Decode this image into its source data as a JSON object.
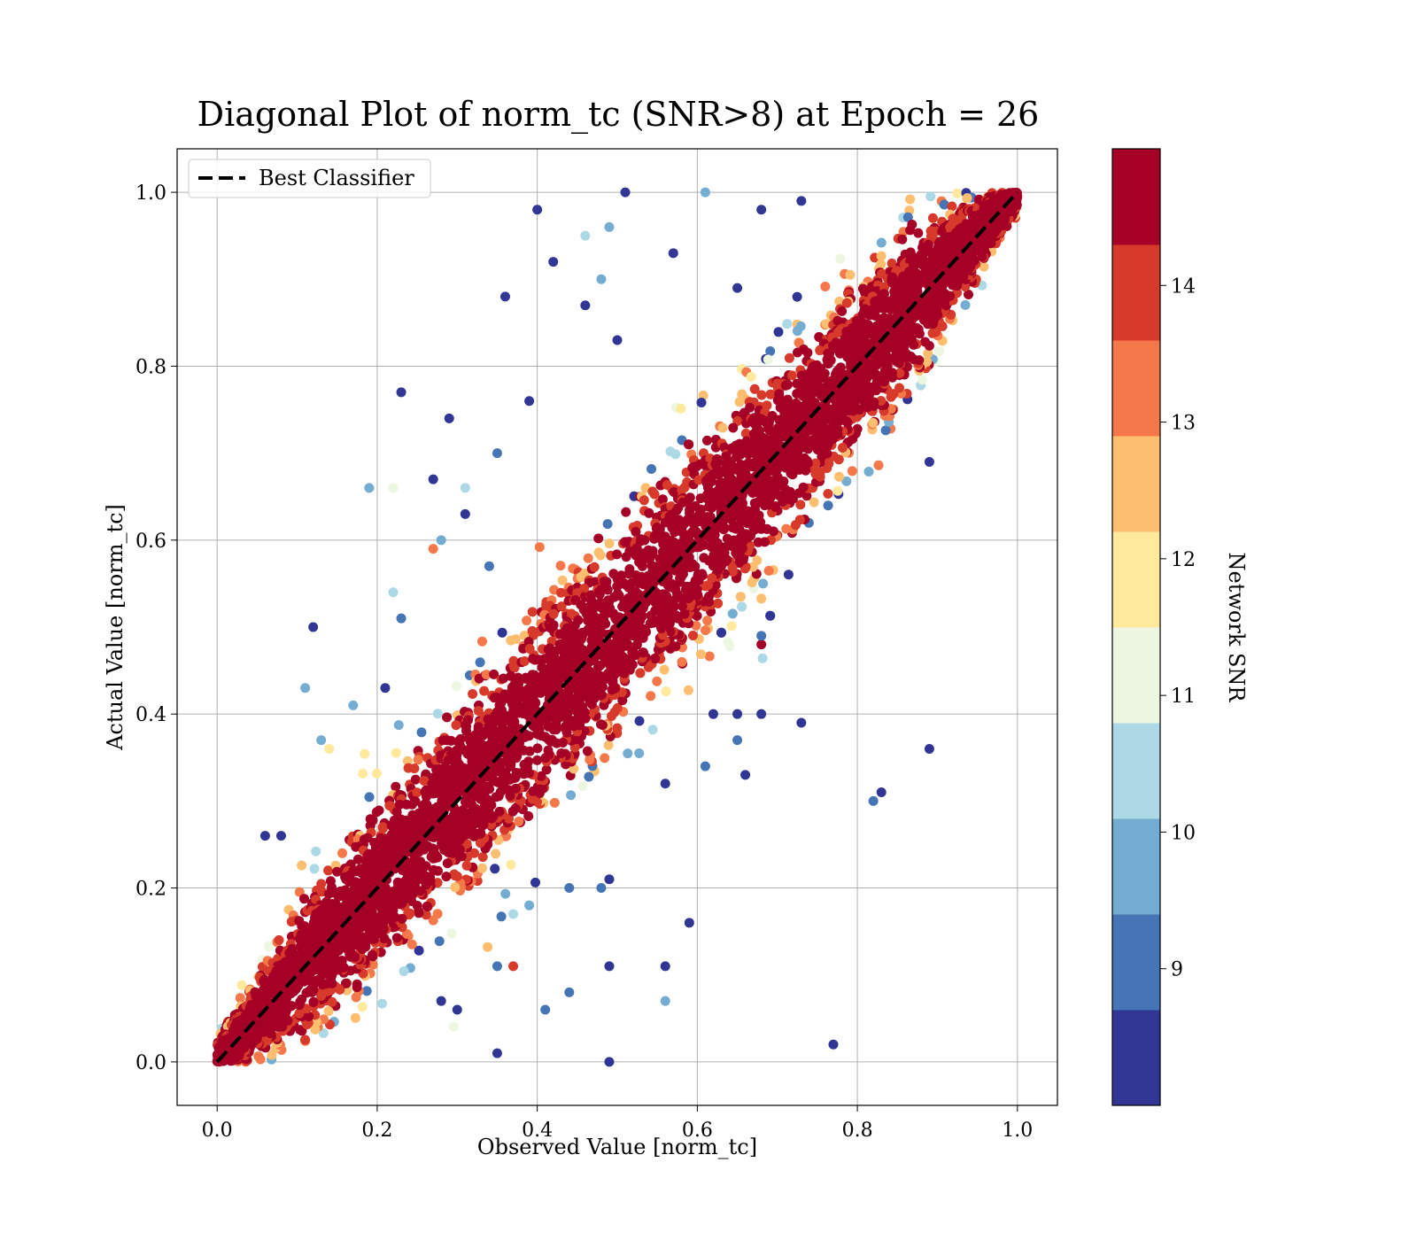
{
  "chart_data": {
    "type": "scatter",
    "title": "Diagonal Plot of norm_tc (SNR>8) at Epoch = 26",
    "xlabel": "Observed Value [norm_tc]",
    "ylabel": "Actual Value [norm_tc]",
    "xlim": [
      -0.05,
      1.05
    ],
    "ylim": [
      -0.05,
      1.05
    ],
    "xticks": [
      0.0,
      0.2,
      0.4,
      0.6,
      0.8,
      1.0
    ],
    "yticks": [
      0.0,
      0.2,
      0.4,
      0.6,
      0.8,
      1.0
    ],
    "xtick_labels": [
      "0.0",
      "0.2",
      "0.4",
      "0.6",
      "0.8",
      "1.0"
    ],
    "ytick_labels": [
      "0.0",
      "0.2",
      "0.4",
      "0.6",
      "0.8",
      "1.0"
    ],
    "grid": true,
    "legend": {
      "placement": "upper-left",
      "entries": [
        {
          "label": "Best Classifier",
          "style": "dashed",
          "color": "#000000"
        }
      ]
    },
    "reference_line": {
      "name": "Best Classifier",
      "x": [
        0.0,
        1.0
      ],
      "y": [
        0.0,
        1.0
      ]
    },
    "colorbar": {
      "label": "Network SNR",
      "range": [
        8.0,
        15.0
      ],
      "ticks": [
        9,
        10,
        11,
        12,
        13,
        14
      ],
      "tick_labels": [
        "9",
        "10",
        "11",
        "12",
        "13",
        "14"
      ],
      "colors": [
        "#313695",
        "#4575b4",
        "#74add1",
        "#abd9e9",
        "#e0f3f8",
        "#ffffbf",
        "#fee090",
        "#fdae61",
        "#f46d43",
        "#d73027",
        "#a50026"
      ],
      "bins": [
        8.0,
        8.7,
        9.4,
        10.1,
        10.8,
        11.5,
        12.2,
        12.9,
        13.6,
        14.3,
        15.0
      ],
      "bin_colors": [
        "#313695",
        "#4575b4",
        "#74add1",
        "#add8e6",
        "#edf6e0",
        "#fee99d",
        "#fdbf6f",
        "#f4784a",
        "#d73a2a",
        "#a50026"
      ]
    },
    "scatter_summary": {
      "x_range": [
        0.0,
        1.0
      ],
      "y_range": [
        0.0,
        1.0
      ],
      "relation": "y ≈ x"
    },
    "outliers": [
      [
        0.36,
        0.88,
        8.3
      ],
      [
        0.39,
        0.76,
        8.3
      ],
      [
        0.23,
        0.77,
        8.3
      ],
      [
        0.29,
        0.74,
        8.3
      ],
      [
        0.19,
        0.66,
        9.5
      ],
      [
        0.27,
        0.67,
        8.3
      ],
      [
        0.31,
        0.63,
        8.3
      ],
      [
        0.42,
        0.92,
        8.3
      ],
      [
        0.4,
        0.98,
        8.3
      ],
      [
        0.46,
        0.95,
        10.5
      ],
      [
        0.49,
        0.96,
        9.8
      ],
      [
        0.51,
        1.0,
        8.5
      ],
      [
        0.46,
        0.87,
        8.3
      ],
      [
        0.48,
        0.9,
        9.8
      ],
      [
        0.5,
        0.83,
        8.5
      ],
      [
        0.57,
        0.93,
        8.3
      ],
      [
        0.61,
        1.0,
        9.8
      ],
      [
        0.65,
        0.89,
        8.3
      ],
      [
        0.68,
        0.98,
        8.3
      ],
      [
        0.73,
        0.99,
        8.3
      ],
      [
        0.12,
        0.5,
        8.3
      ],
      [
        0.22,
        0.54,
        10.7
      ],
      [
        0.23,
        0.51,
        9.0
      ],
      [
        0.28,
        0.6,
        9.8
      ],
      [
        0.27,
        0.59,
        13.0
      ],
      [
        0.22,
        0.66,
        11.0
      ],
      [
        0.31,
        0.66,
        10.7
      ],
      [
        0.35,
        0.7,
        9.0
      ],
      [
        0.34,
        0.57,
        9.0
      ],
      [
        0.13,
        0.37,
        9.8
      ],
      [
        0.14,
        0.36,
        12.0
      ],
      [
        0.17,
        0.41,
        9.8
      ],
      [
        0.11,
        0.43,
        9.8
      ],
      [
        0.21,
        0.43,
        8.3
      ],
      [
        0.06,
        0.26,
        8.3
      ],
      [
        0.08,
        0.26,
        8.3
      ],
      [
        0.68,
        0.4,
        8.3
      ],
      [
        0.62,
        0.4,
        8.3
      ],
      [
        0.65,
        0.4,
        8.3
      ],
      [
        0.73,
        0.39,
        8.3
      ],
      [
        0.61,
        0.34,
        9.0
      ],
      [
        0.65,
        0.37,
        9.0
      ],
      [
        0.66,
        0.33,
        8.3
      ],
      [
        0.89,
        0.36,
        8.3
      ],
      [
        0.82,
        0.3,
        9.0
      ],
      [
        0.83,
        0.31,
        8.3
      ],
      [
        0.56,
        0.32,
        8.3
      ],
      [
        0.49,
        0.21,
        8.3
      ],
      [
        0.44,
        0.2,
        9.0
      ],
      [
        0.48,
        0.2,
        9.0
      ],
      [
        0.39,
        0.18,
        9.8
      ],
      [
        0.37,
        0.17,
        10.5
      ],
      [
        0.59,
        0.16,
        8.3
      ],
      [
        0.37,
        0.11,
        13.9
      ],
      [
        0.35,
        0.11,
        9.0
      ],
      [
        0.49,
        0.11,
        8.3
      ],
      [
        0.56,
        0.11,
        8.3
      ],
      [
        0.41,
        0.06,
        9.0
      ],
      [
        0.44,
        0.08,
        9.0
      ],
      [
        0.56,
        0.07,
        9.8
      ],
      [
        0.35,
        0.01,
        8.3
      ],
      [
        0.49,
        0.0,
        8.3
      ],
      [
        0.77,
        0.02,
        8.3
      ],
      [
        0.3,
        0.06,
        8.3
      ],
      [
        0.28,
        0.07,
        8.3
      ],
      [
        0.89,
        0.69,
        8.3
      ],
      [
        0.68,
        0.48,
        14.8
      ],
      [
        0.68,
        0.49,
        9.0
      ]
    ]
  }
}
